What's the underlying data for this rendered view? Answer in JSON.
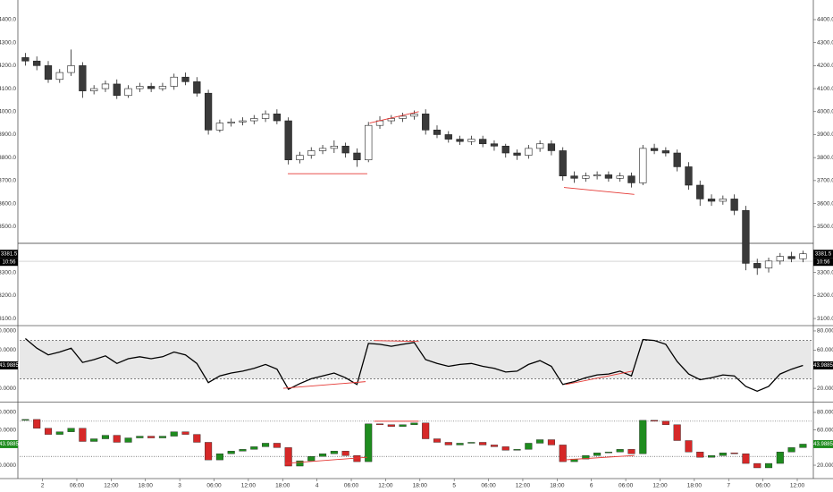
{
  "chart_data": [
    {
      "type": "candlestick",
      "x": [
        1,
        3,
        5,
        7,
        9,
        11,
        13,
        15,
        17,
        19,
        21,
        23,
        25,
        27,
        29,
        31,
        33,
        35,
        37,
        39,
        41,
        43,
        45,
        47,
        49,
        51,
        53,
        55,
        57,
        59,
        61,
        63,
        65,
        67,
        69,
        71,
        73,
        75,
        77,
        79,
        81,
        83,
        85,
        87,
        89,
        91,
        93,
        95,
        97,
        99,
        101,
        103,
        105,
        107,
        109,
        111,
        113,
        115,
        117,
        119,
        121,
        123,
        125,
        127,
        129,
        131,
        133,
        135,
        137
      ],
      "open": [
        4235,
        4220,
        4200,
        4140,
        4170,
        4200,
        4090,
        4100,
        4120,
        4070,
        4100,
        4110,
        4100,
        4110,
        4150,
        4130,
        4080,
        3920,
        3950,
        3955,
        3960,
        3970,
        3990,
        3960,
        3790,
        3810,
        3830,
        3840,
        3850,
        3820,
        3790,
        3940,
        3960,
        3970,
        3980,
        3990,
        3920,
        3900,
        3880,
        3870,
        3880,
        3860,
        3850,
        3820,
        3810,
        3840,
        3860,
        3830,
        3720,
        3710,
        3720,
        3725,
        3710,
        3720,
        3690,
        3840,
        3830,
        3820,
        3760,
        3680,
        3620,
        3610,
        3620,
        3570,
        3340,
        3320,
        3350,
        3370,
        3360
      ],
      "high": [
        4255,
        4240,
        4220,
        4185,
        4270,
        4215,
        4115,
        4135,
        4140,
        4115,
        4125,
        4125,
        4125,
        4165,
        4170,
        4150,
        4095,
        3965,
        3970,
        3975,
        3985,
        4005,
        4010,
        3975,
        3825,
        3845,
        3855,
        3875,
        3865,
        3840,
        3955,
        3980,
        3985,
        3995,
        4005,
        4010,
        3940,
        3915,
        3895,
        3895,
        3895,
        3875,
        3860,
        3835,
        3855,
        3875,
        3875,
        3845,
        3740,
        3735,
        3740,
        3740,
        3735,
        3735,
        3855,
        3860,
        3845,
        3835,
        3780,
        3700,
        3640,
        3635,
        3640,
        3590,
        3360,
        3365,
        3385,
        3390,
        3395
      ],
      "low": [
        4200,
        4180,
        4125,
        4125,
        4155,
        4060,
        4075,
        4085,
        4055,
        4060,
        4085,
        4085,
        4090,
        4095,
        4115,
        4065,
        3900,
        3910,
        3935,
        3940,
        3945,
        3955,
        3945,
        3770,
        3775,
        3795,
        3815,
        3820,
        3800,
        3760,
        3780,
        3925,
        3945,
        3955,
        3965,
        3900,
        3885,
        3865,
        3855,
        3855,
        3845,
        3830,
        3800,
        3790,
        3795,
        3825,
        3810,
        3700,
        3690,
        3695,
        3705,
        3695,
        3695,
        3670,
        3680,
        3815,
        3805,
        3740,
        3660,
        3590,
        3590,
        3595,
        3550,
        3310,
        3290,
        3300,
        3335,
        3345,
        3345
      ],
      "close": [
        4220,
        4200,
        4140,
        4170,
        4200,
        4090,
        4100,
        4120,
        4070,
        4100,
        4110,
        4100,
        4110,
        4150,
        4130,
        4080,
        3920,
        3950,
        3955,
        3960,
        3970,
        3990,
        3960,
        3790,
        3810,
        3830,
        3840,
        3850,
        3820,
        3790,
        3940,
        3960,
        3970,
        3980,
        3990,
        3920,
        3900,
        3880,
        3870,
        3880,
        3860,
        3850,
        3820,
        3810,
        3840,
        3860,
        3830,
        3720,
        3710,
        3720,
        3725,
        3710,
        3720,
        3690,
        3840,
        3830,
        3820,
        3760,
        3680,
        3620,
        3610,
        3620,
        3570,
        3340,
        3320,
        3350,
        3370,
        3360,
        3381.5
      ],
      "up_color": "#ffffff",
      "down_color": "#3a3a3a",
      "outline_color": "#222222",
      "xlim": [
        0,
        138.5
      ],
      "xticks": [
        {
          "value": 4,
          "label": "2"
        },
        {
          "value": 10,
          "label": "06:00"
        },
        {
          "value": 16,
          "label": "12:00"
        },
        {
          "value": 22,
          "label": "18:00"
        },
        {
          "value": 28,
          "label": "3"
        },
        {
          "value": 34,
          "label": "06:00"
        },
        {
          "value": 40,
          "label": "12:00"
        },
        {
          "value": 46,
          "label": "18:00"
        },
        {
          "value": 52,
          "label": "4"
        },
        {
          "value": 58,
          "label": "06:00"
        },
        {
          "value": 64,
          "label": "12:00"
        },
        {
          "value": 70,
          "label": "18:00"
        },
        {
          "value": 76,
          "label": "5"
        },
        {
          "value": 82,
          "label": "06:00"
        },
        {
          "value": 88,
          "label": "12:00"
        },
        {
          "value": 94,
          "label": "18:00"
        },
        {
          "value": 100,
          "label": "6"
        },
        {
          "value": 106,
          "label": "06:00"
        },
        {
          "value": 112,
          "label": "12:00"
        },
        {
          "value": 118,
          "label": "18:00"
        },
        {
          "value": 124,
          "label": "7"
        },
        {
          "value": 130,
          "label": "06:00"
        },
        {
          "value": 136,
          "label": "12:00"
        }
      ],
      "ylim": [
        3073,
        4466
      ],
      "yticks": [
        {
          "value": 4400,
          "label": "4400.0"
        },
        {
          "value": 4300,
          "label": "4300.0"
        },
        {
          "value": 4200,
          "label": "4200.0"
        },
        {
          "value": 4100,
          "label": "4100.0"
        },
        {
          "value": 4000,
          "label": "4000.0"
        },
        {
          "value": 3900,
          "label": "3900.0"
        },
        {
          "value": 3800,
          "label": "3800.0"
        },
        {
          "value": 3700,
          "label": "3700.0"
        },
        {
          "value": 3600,
          "label": "3600.0"
        },
        {
          "value": 3500,
          "label": "3500.0"
        },
        {
          "value": 3300,
          "label": "3300.0"
        },
        {
          "value": 3200,
          "label": "3200.0"
        },
        {
          "value": 3100,
          "label": "3100.0"
        }
      ],
      "last_label": "3381.5",
      "countdown": "10:56",
      "label_color": "#000000",
      "hlines": [
        3427,
        3349
      ],
      "trendline_color": "#e53935",
      "trendlines": [
        {
          "x": [
            46.9,
            60.8
          ],
          "y": [
            3730,
            3730
          ]
        },
        {
          "x": [
            61.2,
            69.8
          ],
          "y": [
            3950,
            4000
          ]
        },
        {
          "x": [
            95.2,
            107.5
          ],
          "y": [
            3670,
            3640
          ]
        }
      ]
    },
    {
      "type": "line",
      "values": [
        72,
        62,
        55,
        58,
        62,
        47,
        50,
        54,
        46,
        51,
        53,
        51,
        53,
        58,
        55,
        46,
        26,
        33,
        36,
        38,
        41,
        45,
        40,
        19,
        25,
        30,
        33,
        36,
        31,
        24,
        67,
        66,
        64,
        66,
        68,
        50,
        46,
        43,
        45,
        46,
        43,
        41,
        37,
        38,
        45,
        49,
        43,
        24,
        27,
        31,
        34,
        35,
        38,
        33,
        71,
        70,
        66,
        48,
        35,
        29,
        31,
        34,
        33,
        22,
        17,
        22,
        35,
        40,
        43.9885
      ],
      "color": "#000000",
      "band_color": "#e8e8e8",
      "label_color": "#000000",
      "ylim": [
        7,
        83.7
      ],
      "yticks": [
        {
          "value": 80,
          "label": "80.0000"
        },
        {
          "value": 60,
          "label": "60.0000"
        },
        {
          "value": 20,
          "label": "20.0000"
        }
      ],
      "levels": [
        70,
        30
      ],
      "last_label": "43.9885",
      "trendline_color": "#e53935",
      "trendlines": [
        {
          "x": [
            46.1,
            60.5
          ],
          "y": [
            20,
            27
          ]
        },
        {
          "x": [
            62,
            69.8
          ],
          "y": [
            70,
            69
          ]
        },
        {
          "x": [
            95.5,
            107.2
          ],
          "y": [
            24,
            38
          ]
        }
      ]
    },
    {
      "type": "rsi-candles",
      "values": [
        72,
        62,
        55,
        58,
        62,
        47,
        50,
        54,
        46,
        51,
        53,
        51,
        53,
        58,
        55,
        46,
        26,
        33,
        36,
        38,
        41,
        45,
        40,
        19,
        25,
        30,
        33,
        36,
        31,
        24,
        67,
        66,
        64,
        66,
        68,
        50,
        46,
        43,
        45,
        46,
        43,
        41,
        37,
        38,
        45,
        49,
        43,
        24,
        27,
        31,
        34,
        35,
        38,
        33,
        71,
        70,
        66,
        48,
        35,
        29,
        31,
        34,
        33,
        22,
        17,
        22,
        35,
        40,
        43.9885
      ],
      "up_color": "#1e8c1e",
      "down_color": "#d62828",
      "label_color": "#1e8c1e",
      "ylim": [
        5.8,
        90.2
      ],
      "yticks": [
        {
          "value": 80,
          "label": "80.0000"
        },
        {
          "value": 60,
          "label": "60.0000"
        },
        {
          "value": 20,
          "label": "20.0000"
        }
      ],
      "levels": [
        70,
        30
      ],
      "last_label": "43.9885",
      "trendline_color": "#e53935",
      "trendlines": [
        {
          "x": [
            46.4,
            60.8
          ],
          "y": [
            22,
            29
          ]
        },
        {
          "x": [
            62,
            69.8
          ],
          "y": [
            70,
            70
          ]
        },
        {
          "x": [
            95.2,
            107.5
          ],
          "y": [
            26,
            31
          ]
        }
      ]
    }
  ]
}
